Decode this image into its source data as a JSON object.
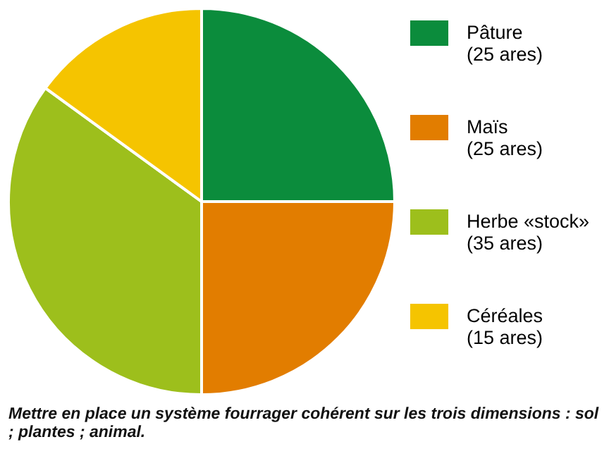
{
  "chart_data": {
    "type": "pie",
    "categories": [
      "Pâture",
      "Maïs",
      "Herbe «stock»",
      "Céréales"
    ],
    "values": [
      25,
      25,
      35,
      15
    ],
    "value_labels": [
      "(25 ares)",
      "(25 ares)",
      "(35 ares)",
      "(15 ares)"
    ],
    "colors": [
      "#0b8c3c",
      "#e27d00",
      "#9dbf1c",
      "#f5c400"
    ],
    "legend": "right",
    "annotations": [
      "Mettre en place un système fourrager cohérent sur les trois dimensions : sol ; plantes ; animal."
    ]
  }
}
